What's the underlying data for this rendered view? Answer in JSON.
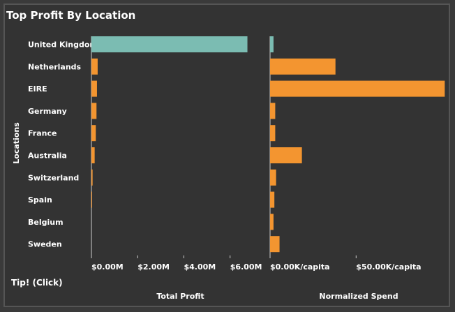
{
  "title": "Top Profit By Location",
  "tip_label": "Tip! (Click)",
  "colors": {
    "highlight": "#7bbcb2",
    "bar": "#f39530",
    "axis": "#cccccc",
    "background": "#333333"
  },
  "chart_data": {
    "type": "bar",
    "orientation": "horizontal",
    "ylabel": "Locations",
    "categories": [
      "United Kingdom",
      "Netherlands",
      "EIRE",
      "Germany",
      "France",
      "Australia",
      "Switzerland",
      "Spain",
      "Belgium",
      "Sweden"
    ],
    "highlighted_category": "United Kingdom",
    "panels": [
      {
        "name": "Total Profit",
        "xlabel": "Total Profit",
        "xlim": [
          0,
          7.7
        ],
        "ticks": [
          0,
          2,
          4,
          6
        ],
        "tick_labels": [
          "$0.00M",
          "$2.00M",
          "$4.00M",
          "$6.00M"
        ],
        "values": [
          6.75,
          0.27,
          0.24,
          0.22,
          0.19,
          0.14,
          0.05,
          0.03,
          0.0,
          0.0
        ]
      },
      {
        "name": "Normalized Spend",
        "xlabel": "Normalized Spend",
        "xlim": [
          0,
          103
        ],
        "ticks": [
          0,
          50
        ],
        "tick_labels": [
          "$0.00K/capita",
          "$50.00K/capita"
        ],
        "values": [
          2.0,
          38.0,
          101.5,
          3.0,
          3.0,
          18.5,
          3.5,
          2.5,
          2.0,
          5.5
        ]
      }
    ]
  }
}
